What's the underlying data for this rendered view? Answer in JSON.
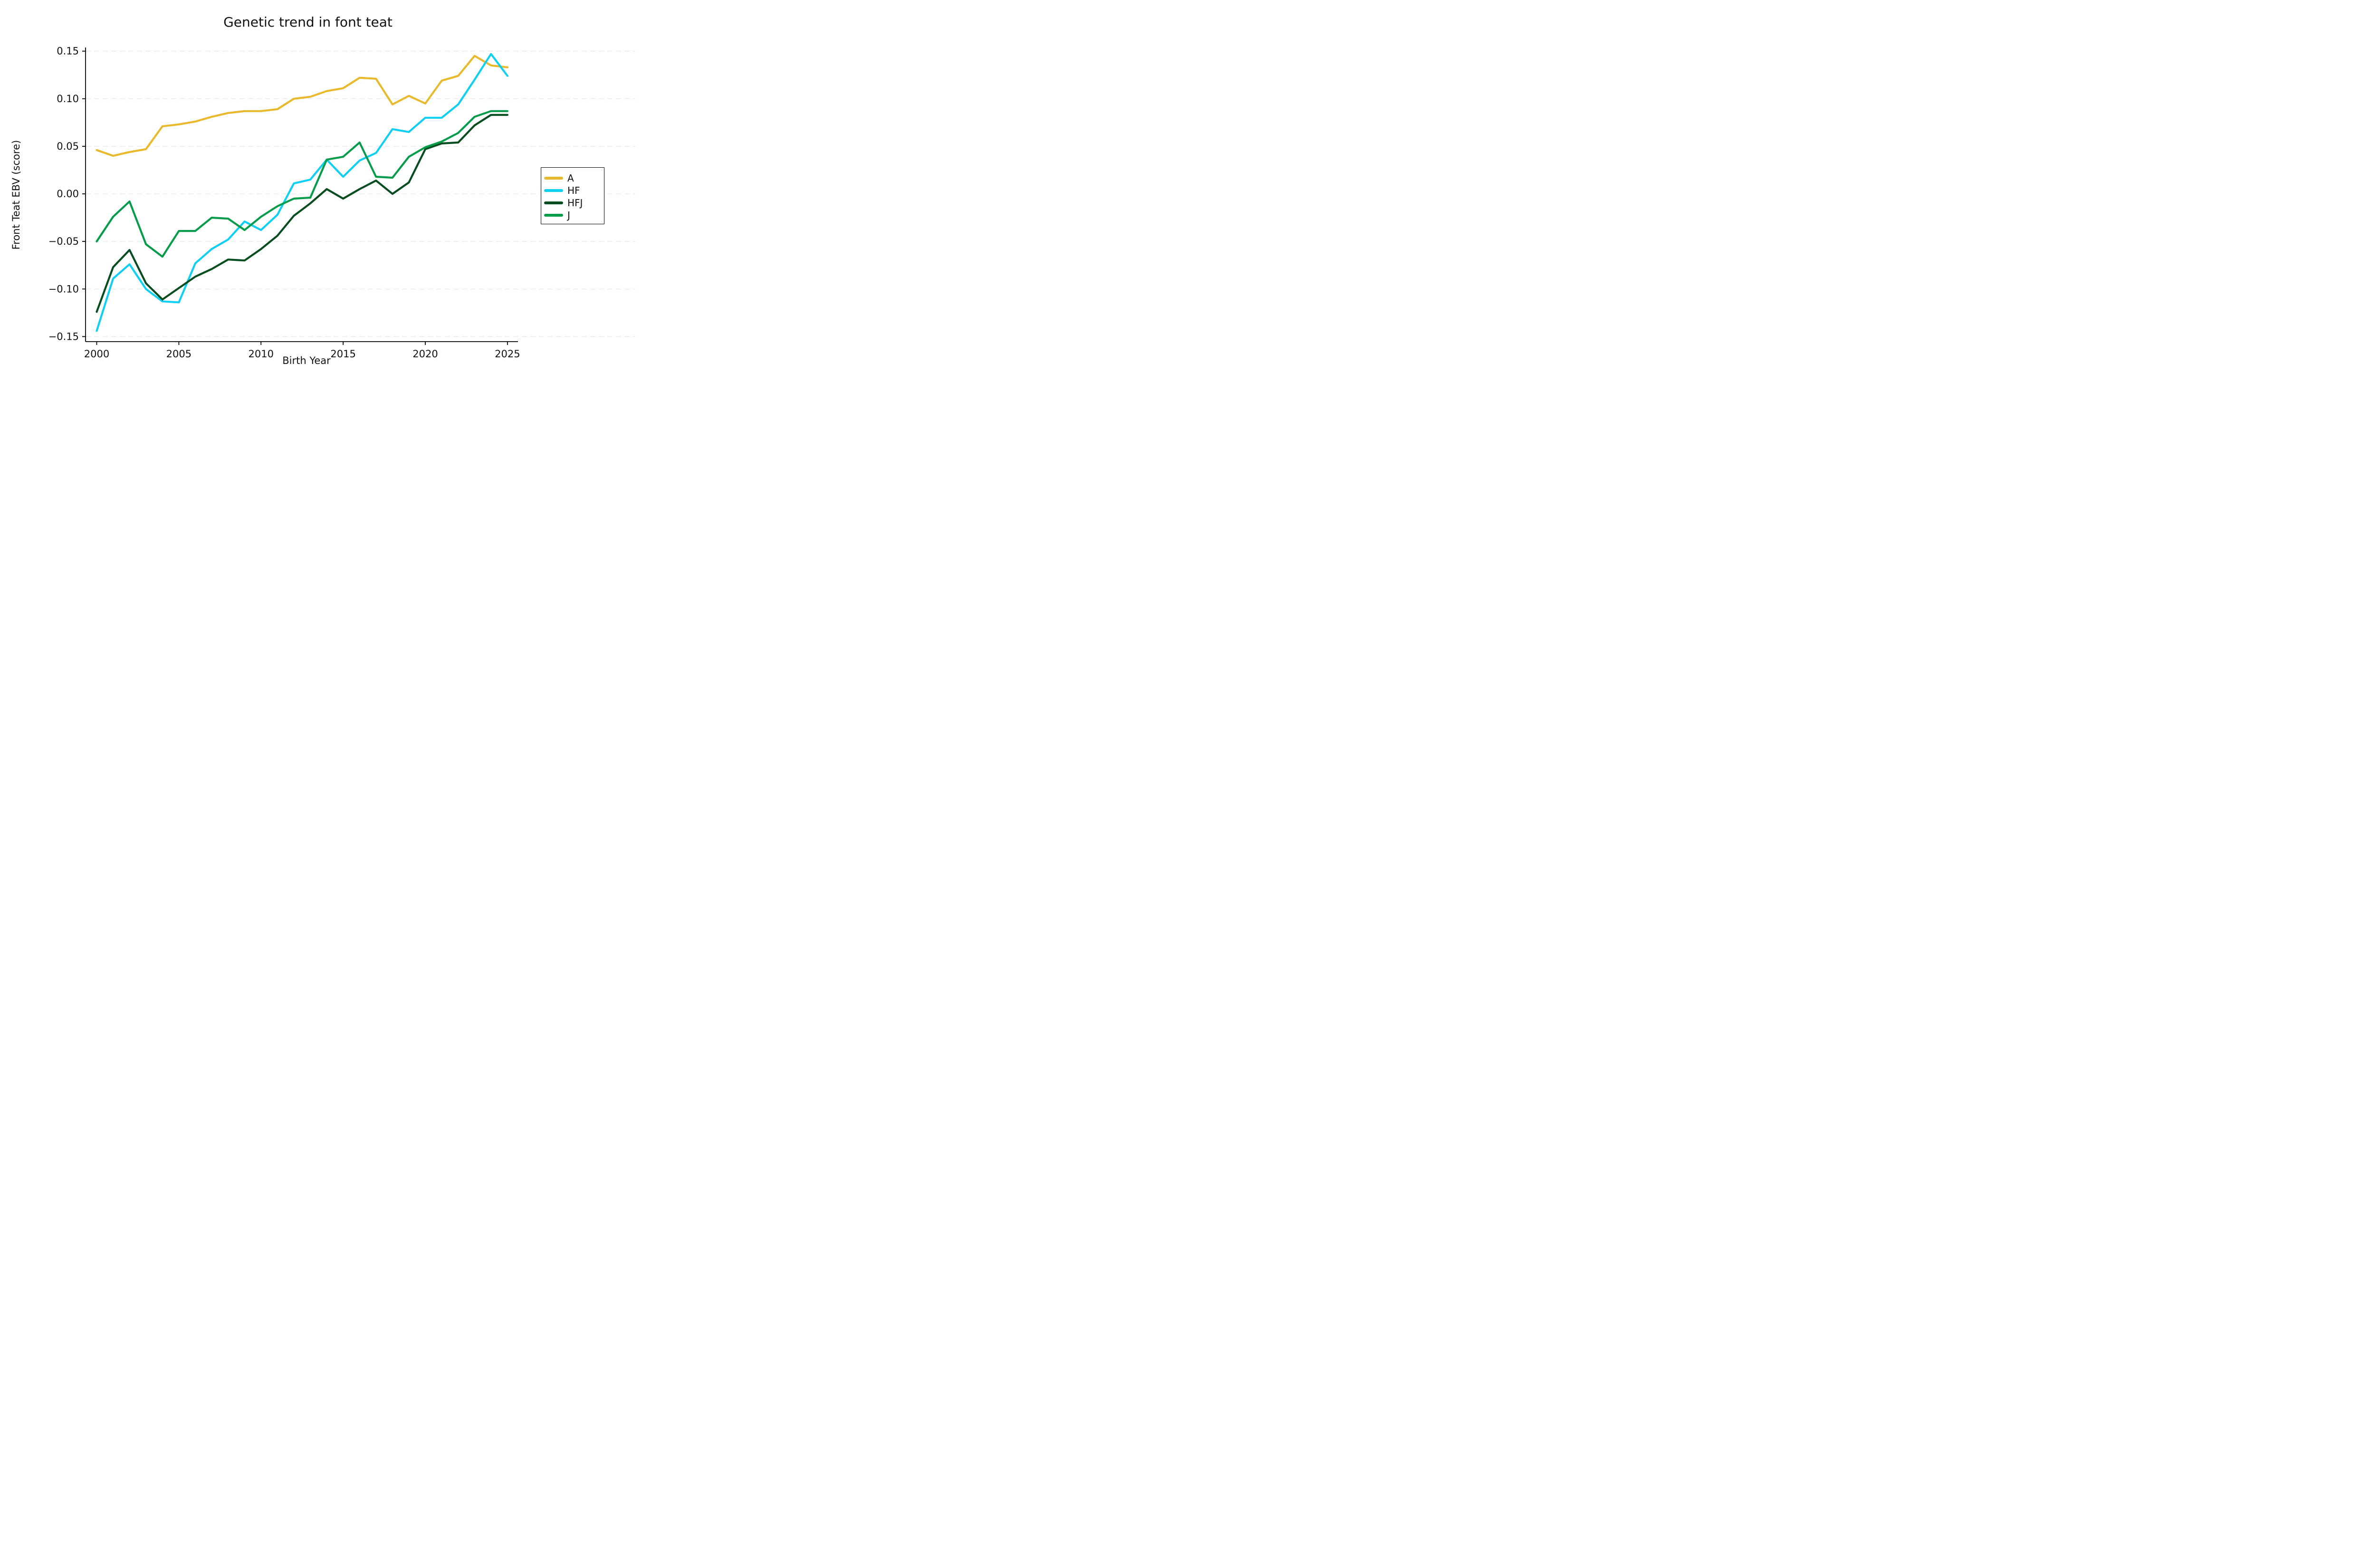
{
  "title": "Genetic trend in font teat",
  "x_axis": {
    "label": "Birth Year",
    "ticks": [
      {
        "label": "2000",
        "value": 2000
      },
      {
        "label": "2005",
        "value": 2005
      },
      {
        "label": "2010",
        "value": 2010
      },
      {
        "label": "2015",
        "value": 2015
      },
      {
        "label": "2020",
        "value": 2020
      },
      {
        "label": "2025",
        "value": 2025
      }
    ]
  },
  "y_axis": {
    "label": "Front Teat EBV (score)",
    "ticks": [
      {
        "label": "0.15",
        "value": 0.15
      },
      {
        "label": "0.10",
        "value": 0.1
      },
      {
        "label": "0.05",
        "value": 0.05
      },
      {
        "label": "0.00",
        "value": 0.0
      },
      {
        "label": "−0.05",
        "value": -0.05
      },
      {
        "label": "−0.10",
        "value": -0.1
      },
      {
        "label": "−0.15",
        "value": -0.15
      }
    ]
  },
  "legend": {
    "position": "right-outside",
    "entries": [
      "A",
      "HF",
      "HFJ",
      "J"
    ]
  },
  "chart_data": {
    "type": "line",
    "title": "Genetic trend in font teat",
    "xlabel": "Birth Year",
    "ylabel": "Front Teat EBV (score)",
    "xlim": [
      1999.3,
      2026.6
    ],
    "ylim": [
      -0.17,
      0.17
    ],
    "grid": "horizontal-dashed",
    "x": [
      2000,
      2001,
      2002,
      2003,
      2004,
      2005,
      2006,
      2007,
      2008,
      2009,
      2010,
      2011,
      2012,
      2013,
      2014,
      2015,
      2016,
      2017,
      2018,
      2019,
      2020,
      2021,
      2022,
      2023,
      2024,
      2025
    ],
    "series": [
      {
        "name": "A",
        "color": "#E8B92C",
        "values": [
          0.046,
          0.04,
          0.044,
          0.047,
          0.071,
          0.073,
          0.076,
          0.081,
          0.085,
          0.087,
          0.087,
          0.089,
          0.1,
          0.102,
          0.108,
          0.111,
          0.122,
          0.121,
          0.094,
          0.103,
          0.095,
          0.119,
          0.124,
          0.145,
          0.135,
          0.133
        ]
      },
      {
        "name": "HF",
        "color": "#0FCFF2",
        "values": [
          -0.144,
          -0.089,
          -0.074,
          -0.1,
          -0.113,
          -0.114,
          -0.073,
          -0.058,
          -0.048,
          -0.029,
          -0.038,
          -0.022,
          0.011,
          0.015,
          0.036,
          0.018,
          0.035,
          0.043,
          0.068,
          0.065,
          0.08,
          0.08,
          0.094,
          0.12,
          0.147,
          0.124
        ]
      },
      {
        "name": "HFJ",
        "color": "#084D20",
        "values": [
          -0.124,
          -0.077,
          -0.059,
          -0.094,
          -0.111,
          -0.099,
          -0.087,
          -0.079,
          -0.069,
          -0.07,
          -0.058,
          -0.044,
          -0.023,
          -0.01,
          0.005,
          -0.005,
          0.005,
          0.014,
          0.0,
          0.012,
          0.047,
          0.053,
          0.054,
          0.072,
          0.083,
          0.083
        ]
      },
      {
        "name": "J",
        "color": "#079C4B",
        "values": [
          -0.05,
          -0.024,
          -0.008,
          -0.053,
          -0.066,
          -0.039,
          -0.039,
          -0.025,
          -0.026,
          -0.038,
          -0.024,
          -0.013,
          -0.005,
          -0.004,
          0.036,
          0.039,
          0.054,
          0.018,
          0.017,
          0.039,
          0.049,
          0.055,
          0.064,
          0.081,
          0.087,
          0.087
        ]
      }
    ]
  }
}
